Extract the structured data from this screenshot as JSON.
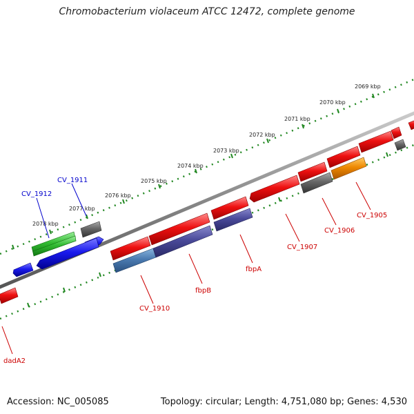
{
  "title": "Chromobacterium violaceum ATCC 12472, complete genome",
  "footer": {
    "accession": "Accession: NC_005085",
    "stats": "Topology: circular; Length: 4,751,080 bp; Genes: 4,530"
  },
  "scale_labels": {
    "k2069": "2069 kbp",
    "k2070": "2070 kbp",
    "k2071": "2071 kbp",
    "k2072": "2072 kbp",
    "k2073": "2073 kbp",
    "k2074": "2074 kbp",
    "k2075": "2075 kbp",
    "k2076": "2076 kbp",
    "k2077": "2077 kbp",
    "k2078": "2078 kbp"
  },
  "gene_labels": {
    "cv1912": "CV_1912",
    "cv1911": "CV_1911",
    "cv1910": "CV_1910",
    "fbpb": "fbpB",
    "fbpa": "fbpA",
    "cv1907": "CV_1907",
    "cv1906": "CV_1906",
    "cv1905": "CV_1905",
    "dada2": "dadA2"
  },
  "colors": {
    "red": "#ee1111",
    "blue": "#1a1aee",
    "green": "#33bb33",
    "gray": "#666666",
    "orange": "#ee8800",
    "purple": "#4a4a9a",
    "steelblue": "#4a7ab0",
    "tick_green": "#228822",
    "label_red": "#cc0000",
    "label_blue": "#0000cc"
  }
}
